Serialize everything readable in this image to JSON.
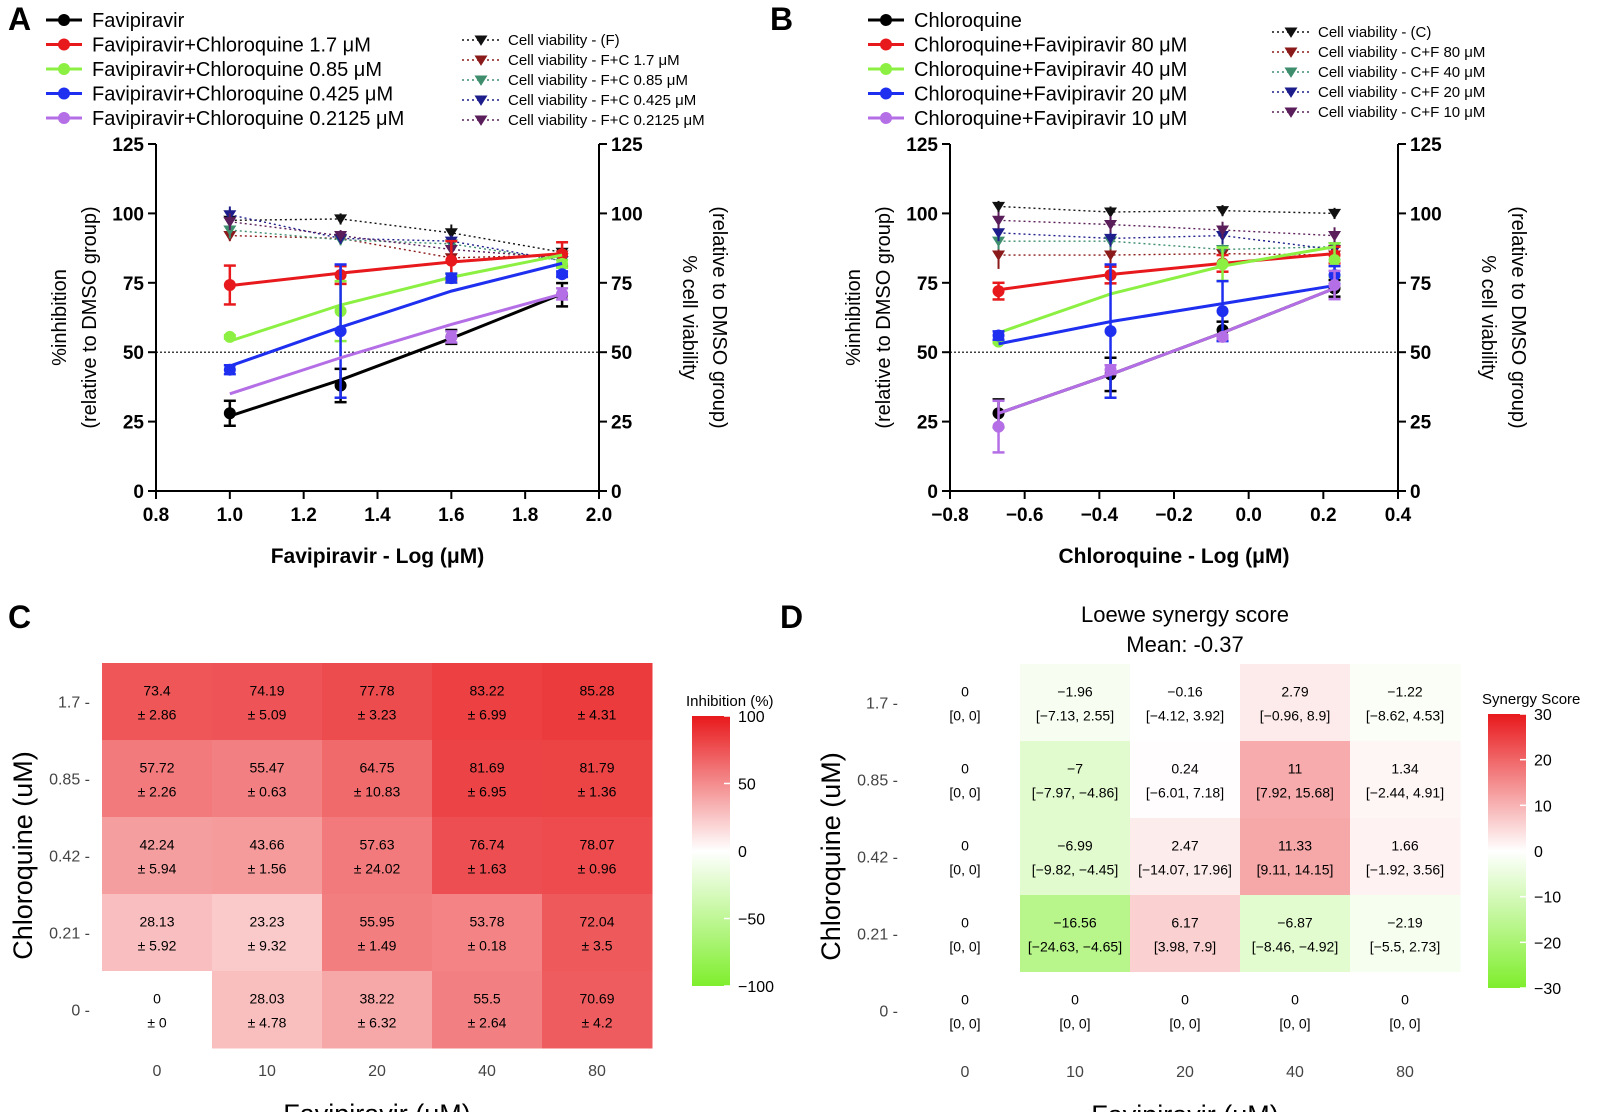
{
  "figure": {
    "panel_letters": [
      "A",
      "B",
      "C",
      "D"
    ]
  },
  "colors": {
    "black": "#000000",
    "red": "#e8191c",
    "lightgreen": "#8cf043",
    "blue": "#1f2ff0",
    "purple": "#b46ee6",
    "via_black": "#111111",
    "via_red": "#8b1a1a",
    "via_green": "#3e8e6e",
    "via_blue": "#1d1d8c",
    "via_purple": "#5a1e5a",
    "heat_high": "#e8191c",
    "heat_mid": "#ffffff",
    "heat_low": "#7fee2d"
  },
  "chart_data": [
    {
      "id": "A",
      "type": "line",
      "title": "",
      "xlabel": "Favipiravir - Log (μM)",
      "ylabel_lines": [
        "%inhibition",
        "(relative to DMSO group)"
      ],
      "y2label_lines": [
        "% cell viability",
        "(relative to DMSO group)"
      ],
      "xlim": [
        0.8,
        2.0
      ],
      "ylim": [
        0,
        125
      ],
      "y2lim": [
        0,
        125
      ],
      "xticks": [
        "0.8",
        "1.0",
        "1.2",
        "1.4",
        "1.6",
        "1.8",
        "2.0"
      ],
      "yticks": [
        "0",
        "25",
        "50",
        "75",
        "100",
        "125"
      ],
      "y2ticks": [
        "0",
        "25",
        "50",
        "75",
        "100",
        "125"
      ],
      "reference_line": 50,
      "x": [
        1.0,
        1.3,
        1.6,
        1.9
      ],
      "inhibition_series": [
        {
          "name": "Favipiravir",
          "color": "black",
          "values": [
            28,
            38,
            55.5,
            70.7
          ],
          "errors": [
            4.5,
            6,
            2.5,
            4.2
          ],
          "fit": [
            27,
            40,
            55,
            71
          ]
        },
        {
          "name": "Favipiravir+Chloroquine 1.7 μM",
          "color": "red",
          "values": [
            74.2,
            77.8,
            83,
            85.3
          ],
          "errors": [
            7,
            3.2,
            7,
            4.3
          ],
          "fit": [
            74,
            78.5,
            82.5,
            85.5
          ]
        },
        {
          "name": "Favipiravir+Chloroquine 0.85 μM",
          "color": "lightgreen",
          "values": [
            55.5,
            64.8,
            76.7,
            81.8
          ],
          "errors": [
            0.6,
            10.8,
            1.6,
            1.4
          ],
          "fit": [
            54,
            67,
            77,
            85
          ]
        },
        {
          "name": "Favipiravir+Chloroquine 0.425 μM",
          "color": "blue",
          "values": [
            43.7,
            57.6,
            76.7,
            78.1
          ],
          "errors": [
            1.6,
            24,
            1.6,
            1
          ],
          "fit": [
            45,
            59,
            72,
            82
          ]
        },
        {
          "name": "Favipiravir+Chloroquine 0.2125 μM",
          "color": "purple",
          "values": [
            null,
            null,
            55.5,
            71
          ],
          "errors": [
            0,
            0,
            2,
            2
          ],
          "fit": [
            35,
            48,
            60,
            71
          ]
        }
      ],
      "viability_series": [
        {
          "name": "Cell viability - (F)",
          "color": "via_black",
          "values": [
            97.5,
            98,
            93,
            86
          ],
          "errors": [
            4,
            2,
            3,
            2
          ]
        },
        {
          "name": "Cell viability - F+C 1.7 μM",
          "color": "via_red",
          "values": [
            92,
            91,
            84,
            85
          ],
          "errors": [
            2,
            2,
            2,
            2
          ]
        },
        {
          "name": "Cell viability - F+C 0.85 μM",
          "color": "via_green",
          "values": [
            94,
            90.5,
            89,
            83
          ],
          "errors": [
            3,
            2,
            2,
            2
          ]
        },
        {
          "name": "Cell viability - F+C 0.425 μM",
          "color": "via_blue",
          "values": [
            99.5,
            91,
            90,
            83
          ],
          "errors": [
            3,
            2,
            2,
            2
          ]
        },
        {
          "name": "Cell viability - F+C 0.2125 μM",
          "color": "via_purple",
          "values": [
            97,
            92,
            87,
            84
          ],
          "errors": [
            3,
            2,
            2,
            2
          ]
        }
      ]
    },
    {
      "id": "B",
      "type": "line",
      "title": "",
      "xlabel": "Chloroquine - Log (μM)",
      "ylabel_lines": [
        "%inhibition",
        "(relative to DMSO group)"
      ],
      "y2label_lines": [
        "% cell viability",
        "(relative to DMSO group)"
      ],
      "xlim": [
        -0.8,
        0.4
      ],
      "ylim": [
        0,
        125
      ],
      "y2lim": [
        0,
        125
      ],
      "xticks": [
        "−0.8",
        "−0.6",
        "−0.4",
        "−0.2",
        "0.0",
        "0.2",
        "0.4"
      ],
      "yticks": [
        "0",
        "25",
        "50",
        "75",
        "100",
        "125"
      ],
      "y2ticks": [
        "0",
        "25",
        "50",
        "75",
        "100",
        "125"
      ],
      "reference_line": 50,
      "x": [
        -0.67,
        -0.37,
        -0.07,
        0.23
      ],
      "inhibition_series": [
        {
          "name": "Chloroquine",
          "color": "black",
          "values": [
            28,
            42,
            58,
            73
          ],
          "errors": [
            5,
            6,
            3,
            3
          ],
          "fit": [
            28,
            42,
            57,
            73
          ]
        },
        {
          "name": "Chloroquine+Favipiravir 80 μM",
          "color": "red",
          "values": [
            72,
            77.8,
            82,
            85
          ],
          "errors": [
            3,
            3,
            3,
            3
          ],
          "fit": [
            72.5,
            78,
            82,
            85.5
          ]
        },
        {
          "name": "Chloroquine+Favipiravir 40 μM",
          "color": "lightgreen",
          "values": [
            53.8,
            null,
            81.7,
            83.2
          ],
          "errors": [
            0.5,
            0,
            6,
            6
          ],
          "fit": [
            57,
            71,
            81,
            88
          ]
        },
        {
          "name": "Chloroquine+Favipiravir 20 μM",
          "color": "blue",
          "values": [
            56,
            57.6,
            64.8,
            77.8
          ],
          "errors": [
            1.5,
            24,
            10.8,
            3.2
          ],
          "fit": [
            53,
            61,
            67.5,
            74
          ]
        },
        {
          "name": "Chloroquine+Favipiravir 10 μM",
          "color": "purple",
          "values": [
            23.2,
            43.7,
            55.5,
            74.2
          ],
          "errors": [
            9.3,
            1.6,
            0.6,
            5.1
          ],
          "fit": [
            28,
            42,
            57,
            73
          ]
        }
      ],
      "viability_series": [
        {
          "name": "Cell viability - (C)",
          "color": "via_black",
          "values": [
            102.5,
            100.5,
            101,
            100
          ],
          "errors": [
            2,
            2,
            2,
            2
          ]
        },
        {
          "name": "Cell viability - C+F 80 μM",
          "color": "via_red",
          "values": [
            85,
            85,
            85.5,
            85
          ],
          "errors": [
            5,
            3,
            3,
            3
          ]
        },
        {
          "name": "Cell viability - C+F 40 μM",
          "color": "via_green",
          "values": [
            90,
            90,
            87,
            88
          ],
          "errors": [
            3,
            3,
            3,
            3
          ]
        },
        {
          "name": "Cell viability - C+F 20 μM",
          "color": "via_blue",
          "values": [
            93,
            91,
            92,
            87
          ],
          "errors": [
            3,
            3,
            3,
            3
          ]
        },
        {
          "name": "Cell viability - C+F 10 μM",
          "color": "via_purple",
          "values": [
            97.5,
            96,
            94,
            92
          ],
          "errors": [
            3,
            3,
            3,
            3
          ]
        }
      ]
    },
    {
      "id": "C",
      "type": "heatmap",
      "title": "",
      "xlabel": "Favipiravir (uM)",
      "ylabel": "Chloroquine (uM)",
      "x_categories": [
        "0",
        "10",
        "20",
        "40",
        "80"
      ],
      "y_categories": [
        "1.7",
        "0.85",
        "0.42",
        "0.21",
        "0"
      ],
      "legend_title": "Inhibition (%)",
      "legend_ticks": [
        "100",
        "50",
        "0",
        "−50",
        "−100"
      ],
      "color_range": [
        -100,
        100
      ],
      "cells": [
        [
          {
            "v": 73.4,
            "top": "73.4",
            "bottom": "± 2.86"
          },
          {
            "v": 74.19,
            "top": "74.19",
            "bottom": "± 5.09"
          },
          {
            "v": 77.78,
            "top": "77.78",
            "bottom": "± 3.23"
          },
          {
            "v": 83.22,
            "top": "83.22",
            "bottom": "± 6.99"
          },
          {
            "v": 85.28,
            "top": "85.28",
            "bottom": "± 4.31"
          }
        ],
        [
          {
            "v": 57.72,
            "top": "57.72",
            "bottom": "± 2.26"
          },
          {
            "v": 55.47,
            "top": "55.47",
            "bottom": "± 0.63"
          },
          {
            "v": 64.75,
            "top": "64.75",
            "bottom": "± 10.83"
          },
          {
            "v": 81.69,
            "top": "81.69",
            "bottom": "± 6.95"
          },
          {
            "v": 81.79,
            "top": "81.79",
            "bottom": "± 1.36"
          }
        ],
        [
          {
            "v": 42.24,
            "top": "42.24",
            "bottom": "± 5.94"
          },
          {
            "v": 43.66,
            "top": "43.66",
            "bottom": "± 1.56"
          },
          {
            "v": 57.63,
            "top": "57.63",
            "bottom": "± 24.02"
          },
          {
            "v": 76.74,
            "top": "76.74",
            "bottom": "± 1.63"
          },
          {
            "v": 78.07,
            "top": "78.07",
            "bottom": "± 0.96"
          }
        ],
        [
          {
            "v": 28.13,
            "top": "28.13",
            "bottom": "± 5.92"
          },
          {
            "v": 23.23,
            "top": "23.23",
            "bottom": "± 9.32"
          },
          {
            "v": 55.95,
            "top": "55.95",
            "bottom": "± 1.49"
          },
          {
            "v": 53.78,
            "top": "53.78",
            "bottom": "± 0.18"
          },
          {
            "v": 72.04,
            "top": "72.04",
            "bottom": "± 3.5"
          }
        ],
        [
          {
            "v": 0,
            "top": "0",
            "bottom": "± 0"
          },
          {
            "v": 28.03,
            "top": "28.03",
            "bottom": "± 4.78"
          },
          {
            "v": 38.22,
            "top": "38.22",
            "bottom": "± 6.32"
          },
          {
            "v": 55.5,
            "top": "55.5",
            "bottom": "± 2.64"
          },
          {
            "v": 70.69,
            "top": "70.69",
            "bottom": "± 4.2"
          }
        ]
      ]
    },
    {
      "id": "D",
      "type": "heatmap",
      "title_lines": [
        "Loewe synergy score",
        "Mean: -0.37"
      ],
      "xlabel": "Favipiravir (uM)",
      "ylabel": "Chloroquine (uM)",
      "x_categories": [
        "0",
        "10",
        "20",
        "40",
        "80"
      ],
      "y_categories": [
        "1.7",
        "0.85",
        "0.42",
        "0.21",
        "0"
      ],
      "legend_title": "Synergy Score",
      "legend_ticks": [
        "30",
        "20",
        "10",
        "0",
        "−10",
        "−20",
        "−30"
      ],
      "color_range": [
        -30,
        30
      ],
      "cells": [
        [
          {
            "v": 0,
            "top": "0",
            "bottom": "[0, 0]"
          },
          {
            "v": -1.96,
            "top": "−1.96",
            "bottom": "[−7.13, 2.55]"
          },
          {
            "v": -0.16,
            "top": "−0.16",
            "bottom": "[−4.12, 3.92]"
          },
          {
            "v": 2.79,
            "top": "2.79",
            "bottom": "[−0.96, 8.9]"
          },
          {
            "v": -1.22,
            "top": "−1.22",
            "bottom": "[−8.62, 4.53]"
          }
        ],
        [
          {
            "v": 0,
            "top": "0",
            "bottom": "[0, 0]"
          },
          {
            "v": -7,
            "top": "−7",
            "bottom": "[−7.97, −4.86]"
          },
          {
            "v": 0.24,
            "top": "0.24",
            "bottom": "[−6.01, 7.18]"
          },
          {
            "v": 11,
            "top": "11",
            "bottom": "[7.92, 15.68]"
          },
          {
            "v": 1.34,
            "top": "1.34",
            "bottom": "[−2.44, 4.91]"
          }
        ],
        [
          {
            "v": 0,
            "top": "0",
            "bottom": "[0, 0]"
          },
          {
            "v": -6.99,
            "top": "−6.99",
            "bottom": "[−9.82, −4.45]"
          },
          {
            "v": 2.47,
            "top": "2.47",
            "bottom": "[−14.07, 17.96]"
          },
          {
            "v": 11.33,
            "top": "11.33",
            "bottom": "[9.11, 14.15]"
          },
          {
            "v": 1.66,
            "top": "1.66",
            "bottom": "[−1.92, 3.56]"
          }
        ],
        [
          {
            "v": 0,
            "top": "0",
            "bottom": "[0, 0]"
          },
          {
            "v": -16.56,
            "top": "−16.56",
            "bottom": "[−24.63, −4.65]"
          },
          {
            "v": 6.17,
            "top": "6.17",
            "bottom": "[3.98, 7.9]"
          },
          {
            "v": -6.87,
            "top": "−6.87",
            "bottom": "[−8.46, −4.92]"
          },
          {
            "v": -2.19,
            "top": "−2.19",
            "bottom": "[−5.5, 2.73]"
          }
        ],
        [
          {
            "v": 0,
            "top": "0",
            "bottom": "[0, 0]"
          },
          {
            "v": 0,
            "top": "0",
            "bottom": "[0, 0]"
          },
          {
            "v": 0,
            "top": "0",
            "bottom": "[0, 0]"
          },
          {
            "v": 0,
            "top": "0",
            "bottom": "[0, 0]"
          },
          {
            "v": 0,
            "top": "0",
            "bottom": "[0, 0]"
          }
        ]
      ]
    }
  ]
}
